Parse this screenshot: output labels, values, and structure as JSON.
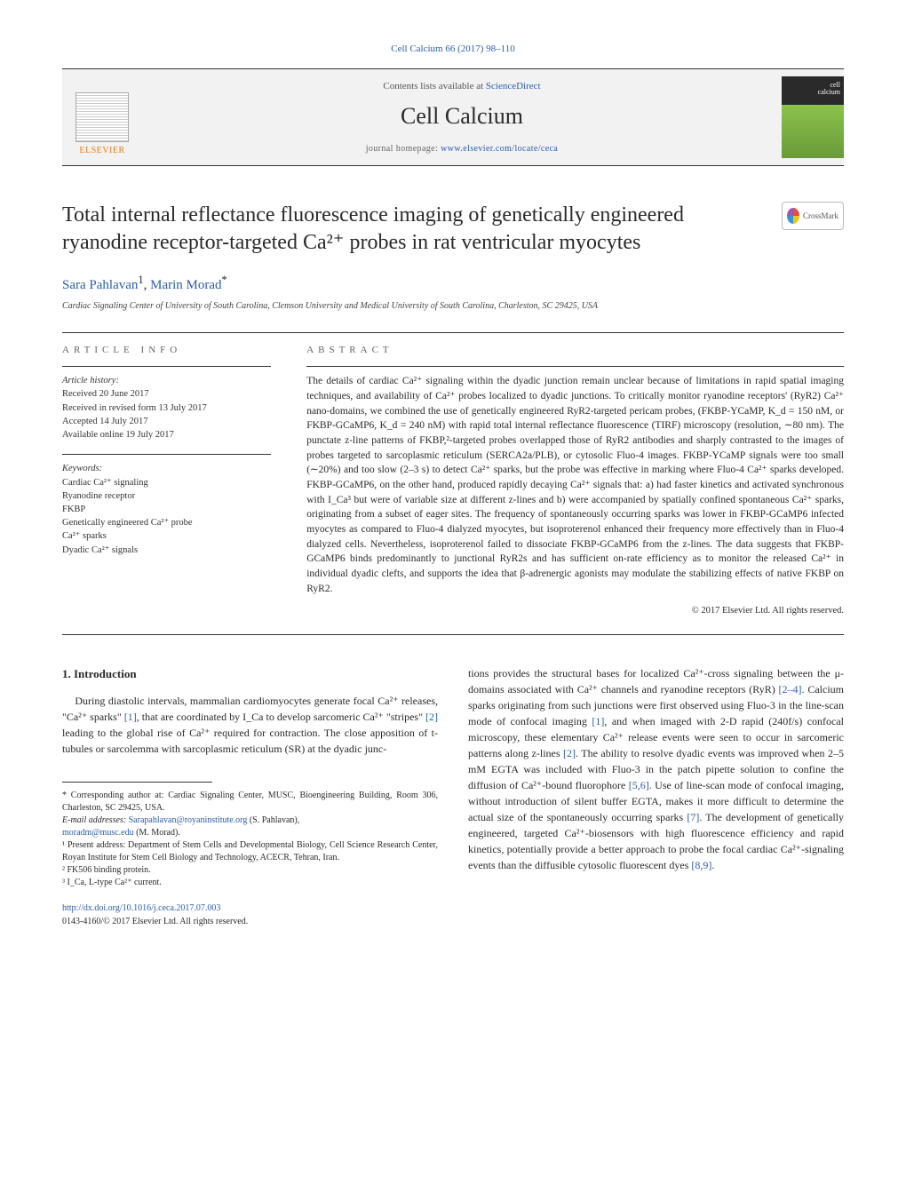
{
  "top_citation": "Cell Calcium 66 (2017) 98–110",
  "header": {
    "contents_prefix": "Contents lists available at ",
    "contents_link": "ScienceDirect",
    "journal_title": "Cell Calcium",
    "homepage_prefix": "journal homepage: ",
    "homepage_link": "www.elsevier.com/locate/ceca",
    "publisher_name": "ELSEVIER",
    "cover_label_line1": "cell",
    "cover_label_line2": "calcium"
  },
  "article": {
    "title": "Total internal reflectance fluorescence imaging of genetically engineered ryanodine receptor-targeted Ca²⁺ probes in rat ventricular myocytes",
    "crossmark_label": "CrossMark",
    "authors_html": "Sara Pahlavan¹, Marin Morad*",
    "author1": "Sara Pahlavan",
    "author1_sup": "1",
    "author_sep": ", ",
    "author2": "Marin Morad",
    "author2_sup": "*",
    "affiliation": "Cardiac Signaling Center of University of South Carolina, Clemson University and Medical University of South Carolina, Charleston, SC 29425, USA"
  },
  "meta": {
    "article_info_label": "ARTICLE INFO",
    "abstract_label": "ABSTRACT",
    "history_head": "Article history:",
    "history_l1": "Received 20 June 2017",
    "history_l2": "Received in revised form 13 July 2017",
    "history_l3": "Accepted 14 July 2017",
    "history_l4": "Available online 19 July 2017",
    "keywords_head": "Keywords:",
    "kw1": "Cardiac Ca²⁺ signaling",
    "kw2": "Ryanodine receptor",
    "kw3": "FKBP",
    "kw4": "Genetically engineered Ca²⁺ probe",
    "kw5": "Ca²⁺ sparks",
    "kw6": "Dyadic Ca²⁺ signals"
  },
  "abstract": {
    "text": "The details of cardiac Ca²⁺ signaling within the dyadic junction remain unclear because of limitations in rapid spatial imaging techniques, and availability of Ca²⁺ probes localized to dyadic junctions. To critically monitor ryanodine receptors' (RyR2) Ca²⁺ nano-domains, we combined the use of genetically engineered RyR2-targeted pericam probes, (FKBP-YCaMP, K_d = 150 nM, or FKBP-GCaMP6, K_d = 240 nM) with rapid total internal reflectance fluorescence (TIRF) microscopy (resolution, ∼80 nm). The punctate z-line patterns of FKBP,²-targeted probes overlapped those of RyR2 antibodies and sharply contrasted to the images of probes targeted to sarcoplasmic reticulum (SERCA2a/PLB), or cytosolic Fluo-4 images. FKBP-YCaMP signals were too small (∼20%) and too slow (2–3 s) to detect Ca²⁺ sparks, but the probe was effective in marking where Fluo-4 Ca²⁺ sparks developed. FKBP-GCaMP6, on the other hand, produced rapidly decaying Ca²⁺ signals that: a) had faster kinetics and activated synchronous with I_Ca³ but were of variable size at different z-lines and b) were accompanied by spatially confined spontaneous Ca²⁺ sparks, originating from a subset of eager sites. The frequency of spontaneously occurring sparks was lower in FKBP-GCaMP6 infected myocytes as compared to Fluo-4 dialyzed myocytes, but isoproterenol enhanced their frequency more effectively than in Fluo-4 dialyzed cells. Nevertheless, isoproterenol failed to dissociate FKBP-GCaMP6 from the z-lines. The data suggests that FKBP-GCaMP6 binds predominantly to junctional RyR2s and has sufficient on-rate efficiency as to monitor the released Ca²⁺ in individual dyadic clefts, and supports the idea that β-adrenergic agonists may modulate the stabilizing effects of native FKBP on RyR2.",
    "copyright": "© 2017 Elsevier Ltd. All rights reserved."
  },
  "body": {
    "intro_head": "1. Introduction",
    "intro_p1_a": "During diastolic intervals, mammalian cardiomyocytes generate focal Ca²⁺ releases, \"Ca²⁺ sparks\" ",
    "ref1": "[1]",
    "intro_p1_b": ", that are coordinated by I_Ca to develop sarcomeric Ca²⁺ \"stripes\" ",
    "ref2": "[2]",
    "intro_p1_c": " leading to the global rise of Ca²⁺ required for contraction. The close apposition of t-tubules or sarcolemma with sarcoplasmic reticulum (SR) at the dyadic junc-",
    "col2_a": "tions provides the structural bases for localized Ca²⁺-cross signaling between the μ-domains associated with Ca²⁺ channels and ryanodine receptors (RyR) ",
    "ref24": "[2–4]",
    "col2_b": ". Calcium sparks originating from such junctions were first observed using Fluo-3 in the line-scan mode of confocal imaging ",
    "ref1b": "[1]",
    "col2_c": ", and when imaged with 2-D rapid (240f/s) confocal microscopy, these elementary Ca²⁺ release events were seen to occur in sarcomeric patterns along z-lines ",
    "ref2b": "[2]",
    "col2_d": ". The ability to resolve dyadic events was improved when 2–5 mM EGTA was included with Fluo-3 in the patch pipette solution to confine the diffusion of Ca²⁺-bound fluorophore ",
    "ref56": "[5,6]",
    "col2_e": ". Use of line-scan mode of confocal imaging, without introduction of silent buffer EGTA, makes it more difficult to determine the actual size of the spontaneously occurring sparks ",
    "ref7": "[7]",
    "col2_f": ". The development of genetically engineered, targeted Ca²⁺-biosensors with high fluorescence efficiency and rapid kinetics, potentially provide a better approach to probe the focal cardiac Ca²⁺-signaling events than the diffusible cytosolic fluorescent dyes ",
    "ref89": "[8,9]",
    "col2_g": "."
  },
  "footnotes": {
    "corr": "* Corresponding author at: Cardiac Signaling Center, MUSC, Bioengineering Building, Room 306, Charleston, SC 29425, USA.",
    "email_label": "E-mail addresses: ",
    "email1": "Sarapahlavan@royaninstitute.org",
    "email1_who": " (S. Pahlavan),",
    "email2": "moradm@musc.edu",
    "email2_who": " (M. Morad).",
    "fn1": "¹ Present address: Department of Stem Cells and Developmental Biology, Cell Science Research Center, Royan Institute for Stem Cell Biology and Technology, ACECR, Tehran, Iran.",
    "fn2": "² FK506 binding protein.",
    "fn3": "³ I_Ca, L-type Ca²⁺ current."
  },
  "doi": {
    "url": "http://dx.doi.org/10.1016/j.ceca.2017.07.003",
    "issn_cr": "0143-4160/© 2017 Elsevier Ltd. All rights reserved."
  },
  "colors": {
    "link": "#2a5db0",
    "text": "#2a2a2a",
    "publisher_orange": "#e87b18",
    "rule": "#333333"
  }
}
